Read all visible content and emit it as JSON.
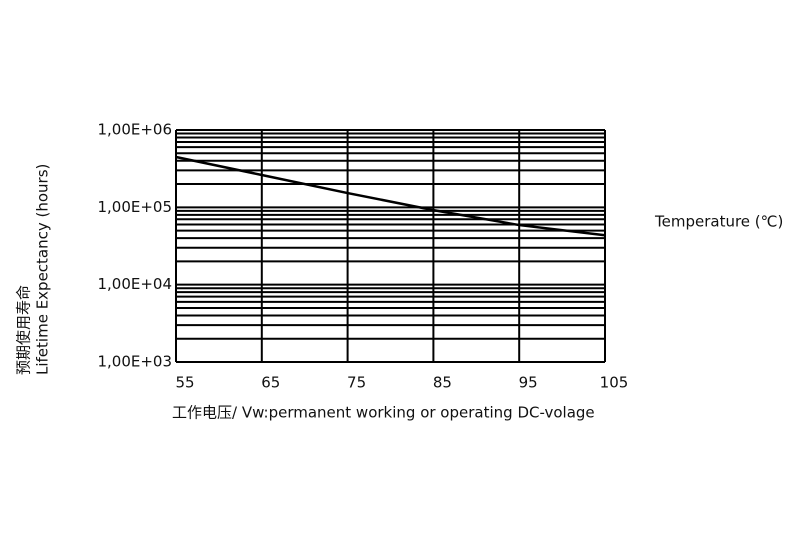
{
  "chart_data": {
    "type": "line",
    "y_label": [
      "预期使用寿命",
      "Lifetime Expectancy (hours)"
    ],
    "x_label": "工作电压/ Vw:permanent working or operating DC-volage",
    "annotation": "Temperature (℃)",
    "x": [
      55,
      65,
      75,
      85,
      95,
      105
    ],
    "series": [
      {
        "color": "#000000",
        "values": [
          448000,
          262000,
          153000,
          92000,
          59000,
          43600
        ]
      }
    ],
    "xlim": [
      55,
      105
    ],
    "xticks": [
      55,
      65,
      75,
      85,
      95,
      105
    ],
    "ylim": [
      1000,
      1000000
    ],
    "yticks": [
      {
        "value": 1000,
        "label": "1,00E+03"
      },
      {
        "value": 10000,
        "label": "1,00E+04"
      },
      {
        "value": 100000,
        "label": "1,00E+05"
      },
      {
        "value": 1000000,
        "label": "1,00E+06"
      }
    ],
    "log_y": true,
    "grid": true,
    "minor_grid": true
  }
}
